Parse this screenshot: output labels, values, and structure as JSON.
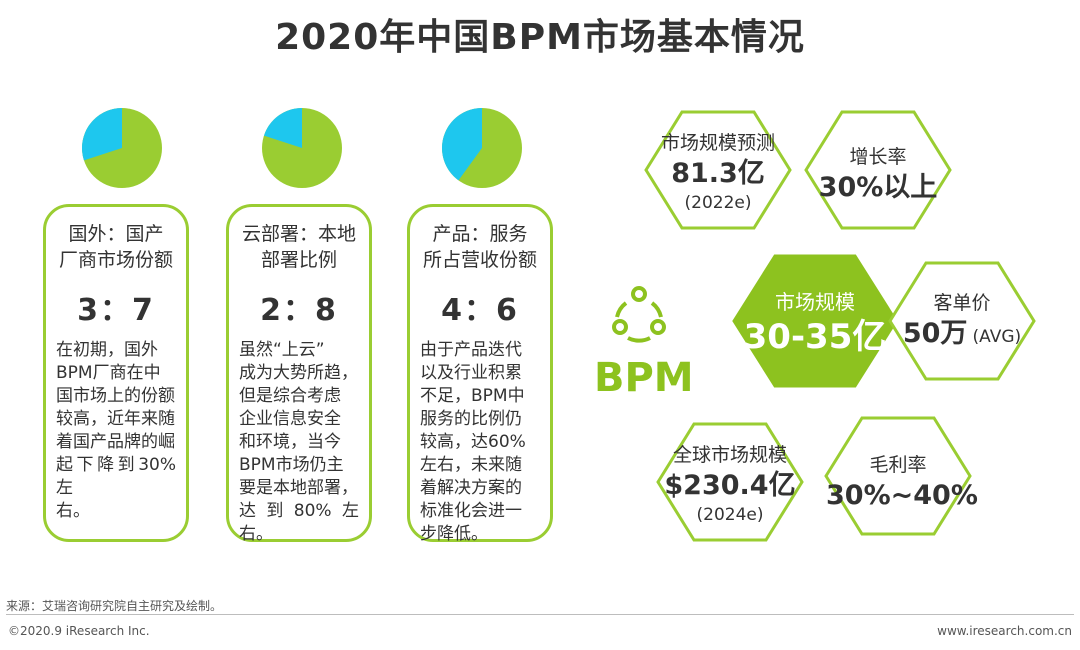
{
  "title": "2020年中国BPM市场基本情况",
  "colors": {
    "green": "#9ACD32",
    "cyan": "#1EC7EE",
    "dark_green": "#8DC21F"
  },
  "cards": [
    {
      "head_line1": "国外：国产",
      "head_line2": "厂商市场份额",
      "ratio": "3：7",
      "pie_share": 0.3,
      "body_lines": [
        "在初期，国外",
        "BPM厂商在中",
        "国市场上的份额",
        "较高，近年来随",
        "着国产品牌的崛",
        "起下降到30%左",
        "右。"
      ]
    },
    {
      "head_line1": "云部署：本地",
      "head_line2": "部署比例",
      "ratio": "2：8",
      "pie_share": 0.2,
      "body_lines": [
        "虽然“上云”",
        "成为大势所趋，",
        "但是综合考虑",
        "企业信息安全",
        "和环境，当今",
        "BPM市场仍主",
        "要是本地部署，",
        "达到80%左右。"
      ]
    },
    {
      "head_line1": "产品：服务",
      "head_line2": "所占营收份额",
      "ratio": "4：6",
      "pie_share": 0.4,
      "body_lines": [
        "由于产品迭代",
        "以及行业积累",
        "不足，BPM中",
        "服务的比例仍",
        "较高，达60%",
        "左右，未来随",
        "着解决方案的",
        "标准化会进一",
        "步降低。"
      ]
    }
  ],
  "hexes": {
    "forecast": {
      "label": "市场规模预测",
      "value": "81.3亿",
      "note": "(2022e)"
    },
    "growth": {
      "label": "增长率",
      "value": "30%以上"
    },
    "center": {
      "label": "市场规模",
      "value": "30-35亿"
    },
    "unit_price": {
      "label": "客单价",
      "value": "50万",
      "note": "(AVG)"
    },
    "global": {
      "label": "全球市场规模",
      "value": "$230.4亿",
      "note": "(2024e)"
    },
    "margin": {
      "label": "毛利率",
      "value": "30%~40%"
    }
  },
  "bpm_logo": "BPM",
  "footer": {
    "source": "来源：艾瑞咨询研究院自主研究及绘制。",
    "copyright": "©2020.9 iResearch Inc.",
    "website": "www.iresearch.com.cn"
  }
}
